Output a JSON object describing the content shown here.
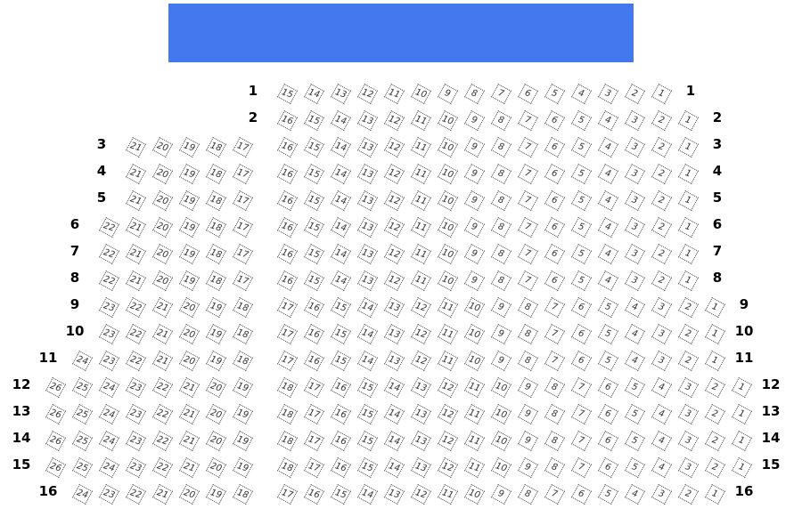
{
  "stage": {
    "color": "#4478EE"
  },
  "rows": [
    {
      "label": "1",
      "left": null,
      "right": [
        15,
        1
      ]
    },
    {
      "label": "2",
      "left": null,
      "right": [
        16,
        1
      ]
    },
    {
      "label": "3",
      "left": [
        21,
        17
      ],
      "right": [
        16,
        1
      ]
    },
    {
      "label": "4",
      "left": [
        21,
        17
      ],
      "right": [
        16,
        1
      ]
    },
    {
      "label": "5",
      "left": [
        21,
        17
      ],
      "right": [
        16,
        1
      ]
    },
    {
      "label": "6",
      "left": [
        22,
        17
      ],
      "right": [
        16,
        1
      ]
    },
    {
      "label": "7",
      "left": [
        22,
        17
      ],
      "right": [
        16,
        1
      ]
    },
    {
      "label": "8",
      "left": [
        22,
        17
      ],
      "right": [
        16,
        1
      ]
    },
    {
      "label": "9",
      "left": [
        23,
        18
      ],
      "right": [
        17,
        1
      ]
    },
    {
      "label": "10",
      "left": [
        23,
        18
      ],
      "right": [
        17,
        1
      ]
    },
    {
      "label": "11",
      "left": [
        24,
        18
      ],
      "right": [
        17,
        1
      ]
    },
    {
      "label": "12",
      "left": [
        26,
        19
      ],
      "right": [
        18,
        1
      ]
    },
    {
      "label": "13",
      "left": [
        26,
        19
      ],
      "right": [
        18,
        1
      ]
    },
    {
      "label": "14",
      "left": [
        26,
        19
      ],
      "right": [
        18,
        1
      ]
    },
    {
      "label": "15",
      "left": [
        26,
        19
      ],
      "right": [
        18,
        1
      ]
    },
    {
      "label": "16",
      "left": [
        24,
        18
      ],
      "right": [
        17,
        1
      ]
    }
  ]
}
